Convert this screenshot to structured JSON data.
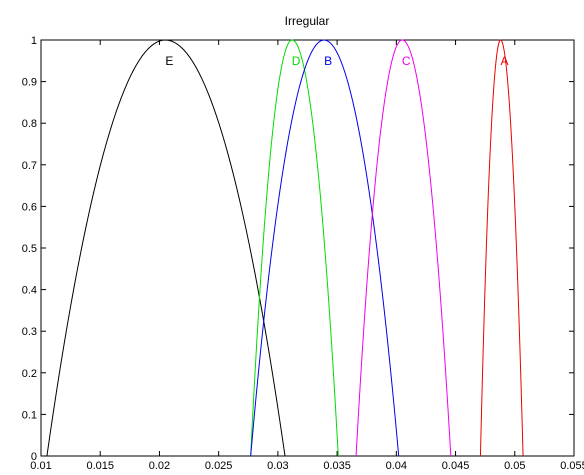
{
  "chart_data": {
    "type": "line",
    "title": "Irregular",
    "xlim": [
      0.01,
      0.055
    ],
    "ylim": [
      0,
      1
    ],
    "xticks": [
      "0.01",
      "0.015",
      "0.02",
      "0.025",
      "0.03",
      "0.035",
      "0.04",
      "0.045",
      "0.05",
      "0.055"
    ],
    "yticks": [
      "0",
      "0.1",
      "0.2",
      "0.3",
      "0.4",
      "0.5",
      "0.6",
      "0.7",
      "0.8",
      "0.9",
      "1"
    ],
    "grid": false,
    "legend": "none",
    "series": [
      {
        "name": "E",
        "color": "#000000",
        "start": 0.0105,
        "peak": 0.0205,
        "end": 0.0306
      },
      {
        "name": "D",
        "color": "#00dd00",
        "start": 0.0277,
        "peak": 0.0312,
        "end": 0.0351
      },
      {
        "name": "B",
        "color": "#0000ee",
        "start": 0.0277,
        "peak": 0.0339,
        "end": 0.0402
      },
      {
        "name": "C",
        "color": "#ee00ee",
        "start": 0.0366,
        "peak": 0.0405,
        "end": 0.0446
      },
      {
        "name": "A",
        "color": "#ee0000",
        "start": 0.0471,
        "peak": 0.0488,
        "end": 0.0507
      }
    ]
  }
}
